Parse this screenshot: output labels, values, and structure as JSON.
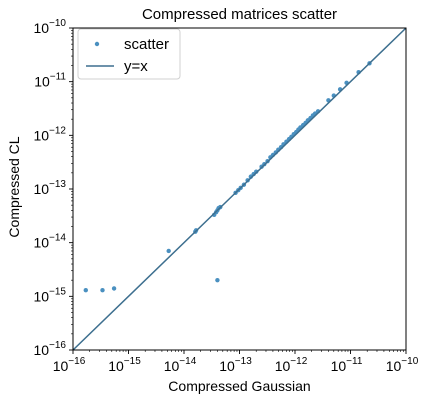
{
  "chart_data": {
    "type": "scatter",
    "title": "Compressed matrices scatter",
    "xlabel": "Compressed Gaussian",
    "ylabel": "Compressed CL",
    "xscale": "log",
    "yscale": "log",
    "xlim": [
      1e-16,
      1e-10
    ],
    "ylim": [
      1e-16,
      1e-10
    ],
    "grid": false,
    "legend_position": "top-left",
    "x_ticks": [
      {
        "base": "10",
        "exp": "−16",
        "value": 1e-16
      },
      {
        "base": "10",
        "exp": "−15",
        "value": 1e-15
      },
      {
        "base": "10",
        "exp": "−14",
        "value": 1e-14
      },
      {
        "base": "10",
        "exp": "−13",
        "value": 1e-13
      },
      {
        "base": "10",
        "exp": "−12",
        "value": 1e-12
      },
      {
        "base": "10",
        "exp": "−11",
        "value": 1e-11
      },
      {
        "base": "10",
        "exp": "−10",
        "value": 1e-10
      }
    ],
    "y_ticks": [
      {
        "base": "10",
        "exp": "−16",
        "value": 1e-16
      },
      {
        "base": "10",
        "exp": "−15",
        "value": 1e-15
      },
      {
        "base": "10",
        "exp": "−14",
        "value": 1e-14
      },
      {
        "base": "10",
        "exp": "−13",
        "value": 1e-13
      },
      {
        "base": "10",
        "exp": "−12",
        "value": 1e-12
      },
      {
        "base": "10",
        "exp": "−11",
        "value": 1e-11
      },
      {
        "base": "10",
        "exp": "−10",
        "value": 1e-10
      }
    ],
    "series": [
      {
        "name": "scatter",
        "kind": "scatter",
        "color": "#4a90c0",
        "points": [
          [
            1.7e-16,
            1.3e-15
          ],
          [
            3.4e-16,
            1.3e-15
          ],
          [
            5.5e-16,
            1.4e-15
          ],
          [
            5.3e-15,
            7e-15
          ],
          [
            1.6e-14,
            1.6e-14
          ],
          [
            1.65e-14,
            1.7e-14
          ],
          [
            4e-14,
            2e-15
          ],
          [
            3.5e-14,
            3.3e-14
          ],
          [
            3.8e-14,
            3.7e-14
          ],
          [
            4e-14,
            4e-14
          ],
          [
            4.2e-14,
            4.4e-14
          ],
          [
            4.5e-14,
            4.6e-14
          ],
          [
            8.5e-14,
            8.5e-14
          ],
          [
            9.5e-14,
            9.5e-14
          ],
          [
            1.05e-13,
            1.05e-13
          ],
          [
            1.2e-13,
            1.2e-13
          ],
          [
            1.4e-13,
            1.45e-13
          ],
          [
            1.6e-13,
            1.7e-13
          ],
          [
            1.8e-13,
            1.9e-13
          ],
          [
            2e-13,
            2.1e-13
          ],
          [
            2.5e-13,
            2.6e-13
          ],
          [
            2.8e-13,
            2.9e-13
          ],
          [
            3.2e-13,
            3.3e-13
          ],
          [
            3.6e-13,
            3.9e-13
          ],
          [
            4e-13,
            4.3e-13
          ],
          [
            4.5e-13,
            4.8e-13
          ],
          [
            5e-13,
            5.4e-13
          ],
          [
            5.6e-13,
            6e-13
          ],
          [
            6.2e-13,
            6.8e-13
          ],
          [
            7e-13,
            7.6e-13
          ],
          [
            7.8e-13,
            8.5e-13
          ],
          [
            8.6e-13,
            9.4e-13
          ],
          [
            9.5e-13,
            1.05e-12
          ],
          [
            1.05e-12,
            1.15e-12
          ],
          [
            1.15e-12,
            1.28e-12
          ],
          [
            1.25e-12,
            1.4e-12
          ],
          [
            1.4e-12,
            1.55e-12
          ],
          [
            1.55e-12,
            1.7e-12
          ],
          [
            1.7e-12,
            1.9e-12
          ],
          [
            1.9e-12,
            2.1e-12
          ],
          [
            2.1e-12,
            2.35e-12
          ],
          [
            2.3e-12,
            2.55e-12
          ],
          [
            2.6e-12,
            2.8e-12
          ],
          [
            4e-12,
            4.5e-12
          ],
          [
            5e-12,
            5.5e-12
          ],
          [
            6.5e-12,
            7.2e-12
          ],
          [
            8.5e-12,
            9.5e-12
          ],
          [
            1.4e-11,
            1.5e-11
          ],
          [
            2.2e-11,
            2.2e-11
          ]
        ]
      },
      {
        "name": "y=x",
        "kind": "line",
        "color": "#3d6f8f",
        "points": [
          [
            1e-16,
            1e-16
          ],
          [
            1e-10,
            1e-10
          ]
        ]
      }
    ]
  }
}
